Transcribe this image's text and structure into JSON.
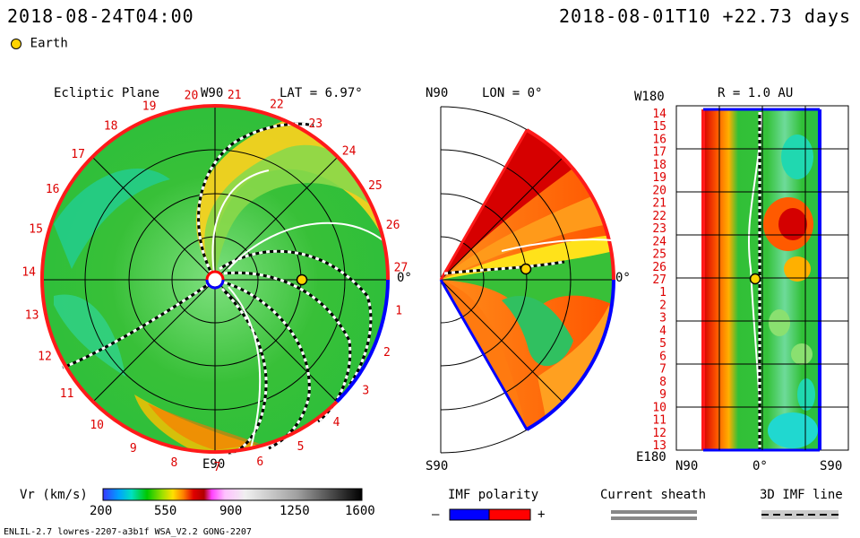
{
  "header": {
    "timestamp": "2018-08-24T04:00",
    "run_info": "2018-08-01T10 +22.73 days",
    "legend_earth": "Earth"
  },
  "ecliptic_panel": {
    "title": "Ecliptic Plane",
    "top_label": "W90",
    "bottom_label": "E90",
    "right_label": "0°",
    "lat_label": "LAT = 6.97°",
    "rotation_numbers": [
      "20",
      "21",
      "22",
      "23",
      "24",
      "25",
      "26",
      "27",
      "1",
      "2",
      "3",
      "4",
      "5",
      "6",
      "7",
      "8",
      "9",
      "10",
      "11",
      "12",
      "13",
      "14",
      "15",
      "16",
      "17",
      "18",
      "19"
    ]
  },
  "meridional_panel": {
    "top_label": "N90",
    "bottom_label": "S90",
    "lon_label": "LON = 0°",
    "right_label": "0°"
  },
  "radial_panel": {
    "title": "R = 1.0 AU",
    "top_left_label": "W180",
    "bottom_left_label": "E180",
    "bottom_labels": [
      "N90",
      "0°",
      "S90"
    ],
    "rows": [
      "14",
      "15",
      "16",
      "17",
      "18",
      "19",
      "20",
      "21",
      "22",
      "23",
      "24",
      "25",
      "26",
      "27",
      "1",
      "2",
      "3",
      "4",
      "5",
      "6",
      "7",
      "8",
      "9",
      "10",
      "11",
      "12",
      "13"
    ]
  },
  "colorbar": {
    "label": "Vr (km/s)",
    "ticks": [
      "200",
      "550",
      "900",
      "1250",
      "1600"
    ]
  },
  "legends": {
    "imf_polarity": "IMF polarity",
    "minus": "–",
    "plus": "+",
    "current_sheath": "Current sheath",
    "imf_line": "3D IMF line"
  },
  "footer": {
    "model": "ENLIL-2.7 lowres-2207-a3b1f WSA_V2.2 GONG-2207"
  },
  "colors": {
    "polarity_negative": "#0000ff",
    "polarity_positive": "#ff0000",
    "earth": "#ffd400",
    "rotation_numbers": "#dd0000"
  }
}
